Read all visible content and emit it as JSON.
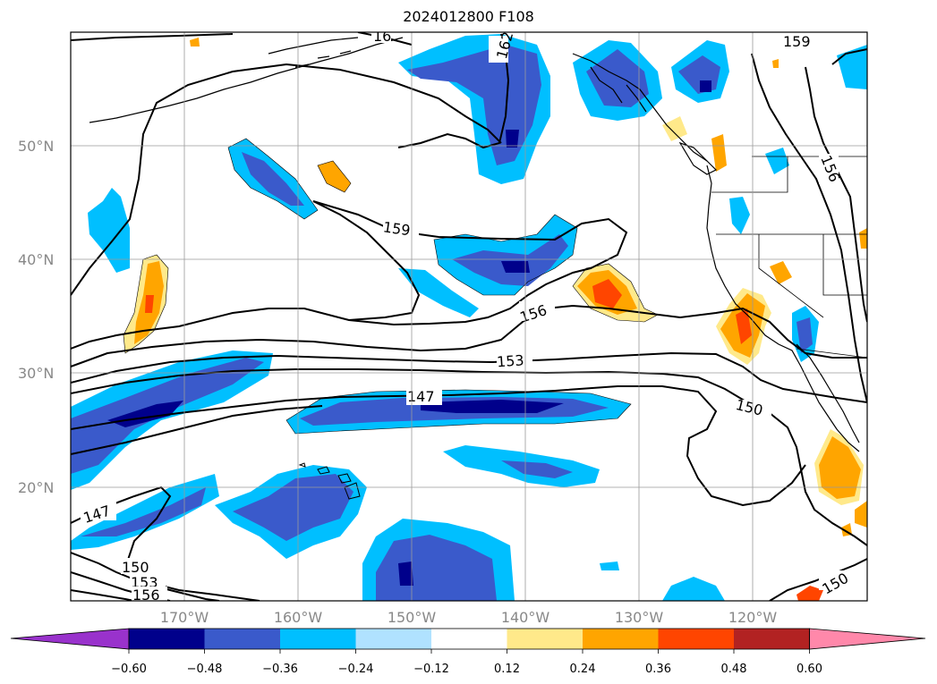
{
  "title": "2024012800 F108",
  "map": {
    "lon_range": [
      -180,
      -110
    ],
    "lat_range": [
      10,
      60
    ],
    "lat_labels": [
      "50°N",
      "40°N",
      "30°N",
      "20°N"
    ],
    "lon_labels": [
      "170°W",
      "160°W",
      "150°W",
      "140°W",
      "130°W",
      "120°W"
    ],
    "gridlines": true
  },
  "colorbar": {
    "ticks": [
      "−0.60",
      "−0.48",
      "−0.36",
      "−0.24",
      "−0.12",
      "0.12",
      "0.24",
      "0.36",
      "0.48",
      "0.60"
    ],
    "colors": [
      "#9932cc",
      "#00008b",
      "#3a5acb",
      "#00bfff",
      "#b0e2ff",
      "#ffffff",
      "#ffe98a",
      "#ffa500",
      "#ff4500",
      "#b22222",
      "#ff88aa"
    ],
    "extend": "both"
  },
  "contour_labels": [
    "159",
    "159",
    "156",
    "153",
    "147",
    "150",
    "147",
    "150",
    "153",
    "156",
    "150",
    "162",
    "156",
    "16"
  ]
}
